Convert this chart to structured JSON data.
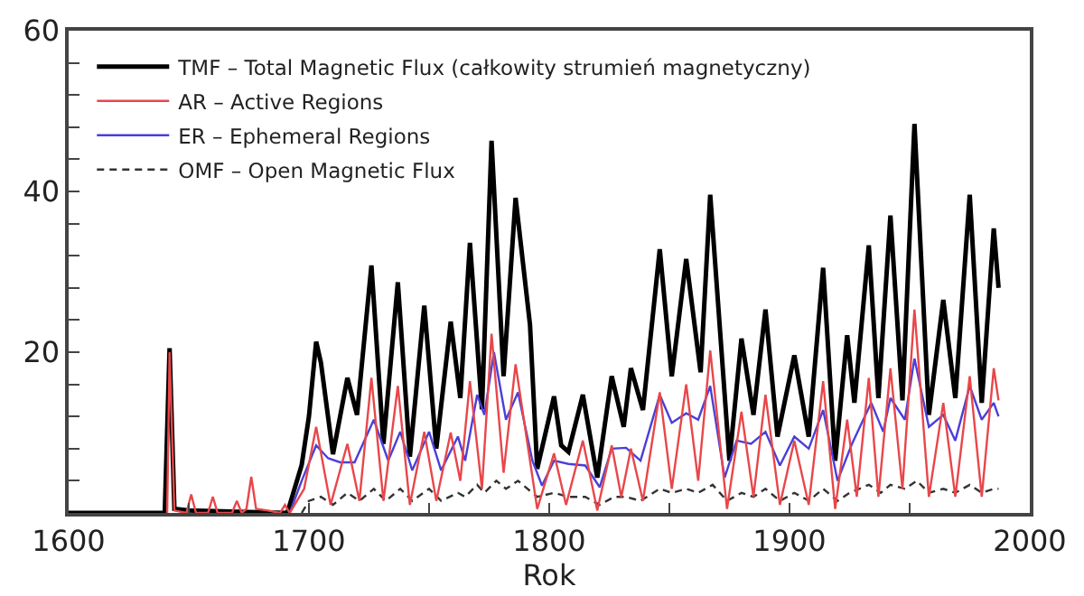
{
  "chart_data": {
    "type": "line",
    "xlabel": "Rok",
    "xlim": [
      1600,
      2000
    ],
    "xticks": [
      1600,
      {
        "value": 1650,
        "label": null
      },
      1700,
      {
        "value": 1750,
        "label": null
      },
      1800,
      {
        "value": 1850,
        "label": null
      },
      1900,
      {
        "value": 1950,
        "label": null
      },
      2000
    ],
    "ylim": [
      0,
      60
    ],
    "yticks": [
      {
        "value": 0,
        "label": null
      },
      {
        "value": 4,
        "label": null
      },
      {
        "value": 8,
        "label": null
      },
      {
        "value": 12,
        "label": null
      },
      {
        "value": 16,
        "label": null
      },
      20,
      {
        "value": 24,
        "label": null
      },
      {
        "value": 28,
        "label": null
      },
      {
        "value": 32,
        "label": null
      },
      {
        "value": 36,
        "label": null
      },
      40,
      {
        "value": 44,
        "label": null
      },
      {
        "value": 48,
        "label": null
      },
      {
        "value": 52,
        "label": null
      },
      {
        "value": 56,
        "label": null
      },
      60
    ],
    "legend": "top left",
    "marker": "none",
    "series": [
      {
        "name": "TMF – Total Magnetic Flux (całkowity strumień magnetyczny)",
        "color": "#000000",
        "line_style": "solid",
        "x": [
          1600,
          1640,
          1642,
          1644,
          1650,
          1691,
          1697,
          1700,
          1703,
          1705,
          1710,
          1716,
          1720,
          1726,
          1731,
          1737,
          1742,
          1748,
          1753,
          1759,
          1763,
          1767,
          1772,
          1776,
          1781,
          1786,
          1792,
          1795,
          1802,
          1805,
          1808,
          1814,
          1820,
          1826,
          1831,
          1834,
          1839,
          1846,
          1851,
          1857,
          1863,
          1867,
          1875,
          1880,
          1885,
          1890,
          1895,
          1902,
          1908,
          1914,
          1919,
          1924,
          1927,
          1933,
          1937,
          1942,
          1947,
          1952,
          1958,
          1964,
          1969,
          1975,
          1980,
          1985,
          1987
        ],
        "values": [
          0,
          0,
          20.5,
          0.5,
          0.3,
          0,
          6,
          12,
          21.3,
          18.7,
          7.3,
          16.8,
          12.2,
          30.8,
          8.6,
          28.7,
          7,
          25.8,
          8,
          23.8,
          14.3,
          33.6,
          12.9,
          46.3,
          17,
          39.2,
          23.4,
          5.5,
          14.5,
          8.4,
          7.6,
          14.7,
          4.4,
          17,
          10.7,
          18,
          12.8,
          32.8,
          17,
          31.6,
          17.5,
          39.6,
          6.5,
          21.7,
          12.2,
          25.3,
          9.5,
          19.6,
          9.5,
          30.5,
          6.5,
          22.1,
          13.7,
          33.3,
          14.3,
          37,
          14,
          48.4,
          12.2,
          26.5,
          14.3,
          39.6,
          13.7,
          35.4,
          28
        ]
      },
      {
        "name": "AR – Active Regions",
        "color": "#e8474a",
        "line_style": "solid",
        "x": [
          1641,
          1642,
          1644,
          1649,
          1651,
          1653,
          1658,
          1660,
          1662,
          1668,
          1670,
          1672,
          1674,
          1676,
          1678,
          1683,
          1688,
          1690,
          1692,
          1698,
          1703,
          1709,
          1716,
          1721,
          1726,
          1731,
          1737,
          1742,
          1748,
          1753,
          1759,
          1763,
          1767,
          1772,
          1776,
          1781,
          1786,
          1795,
          1802,
          1807,
          1814,
          1820,
          1826,
          1830,
          1834,
          1839,
          1846,
          1851,
          1857,
          1862,
          1867,
          1874,
          1880,
          1885,
          1890,
          1896,
          1902,
          1908,
          1914,
          1919,
          1924,
          1928,
          1933,
          1937,
          1942,
          1947,
          1952,
          1958,
          1964,
          1969,
          1975,
          1980,
          1985,
          1987
        ],
        "values": [
          0,
          20,
          0.3,
          0,
          2.3,
          0,
          0,
          2,
          0,
          0,
          1.5,
          0,
          0.5,
          4.5,
          0.5,
          0.3,
          0,
          1,
          0,
          3,
          10.7,
          1,
          8.6,
          1.5,
          16.8,
          1.5,
          15.8,
          1,
          10.1,
          1.5,
          10,
          4,
          16.4,
          3,
          22.3,
          5,
          18.5,
          0.5,
          7.4,
          1,
          9,
          0.3,
          8.4,
          2,
          8,
          1.5,
          15,
          3,
          16,
          4,
          20.2,
          0.5,
          12.6,
          2,
          14.7,
          1,
          9,
          1,
          16.4,
          0.5,
          11.6,
          2,
          16.8,
          2,
          18,
          3,
          25.3,
          2,
          13.7,
          2,
          17,
          2,
          18,
          14
        ]
      },
      {
        "name": "ER – Ephemeral Regions",
        "color": "#4a3fd8",
        "line_style": "solid",
        "x": [
          1692,
          1697,
          1703,
          1708,
          1713,
          1719,
          1727,
          1733,
          1738,
          1743,
          1750,
          1755,
          1762,
          1765,
          1770,
          1773,
          1777,
          1782,
          1787,
          1793,
          1797,
          1802,
          1808,
          1815,
          1821,
          1826,
          1832,
          1838,
          1846,
          1851,
          1857,
          1862,
          1867,
          1873,
          1878,
          1884,
          1890,
          1896,
          1902,
          1908,
          1914,
          1920,
          1926,
          1934,
          1939,
          1942,
          1948,
          1952,
          1958,
          1964,
          1969,
          1975,
          1980,
          1985,
          1987
        ],
        "values": [
          0,
          4,
          8.4,
          6.8,
          6.3,
          6.3,
          11.6,
          6.5,
          10.1,
          5.3,
          10.1,
          5.3,
          9.5,
          6.5,
          14.7,
          12.2,
          20,
          11.6,
          15,
          6.5,
          3.4,
          6.5,
          6.1,
          5.9,
          3.2,
          8,
          8.1,
          6.5,
          14.7,
          11.2,
          12.4,
          11.6,
          15.8,
          4.4,
          9,
          8.6,
          10.1,
          5.9,
          9.5,
          8,
          12.8,
          4,
          8.6,
          13.7,
          10.1,
          14.3,
          11.6,
          19.2,
          10.7,
          12.2,
          9,
          15.8,
          11.6,
          13.7,
          12
        ]
      },
      {
        "name": "OMF – Open Magnetic Flux",
        "color": "#333333",
        "line_style": "dashed",
        "x": [
          1697,
          1700,
          1705,
          1710,
          1716,
          1721,
          1727,
          1732,
          1738,
          1743,
          1750,
          1755,
          1762,
          1765,
          1770,
          1773,
          1778,
          1782,
          1787,
          1795,
          1802,
          1808,
          1815,
          1821,
          1827,
          1832,
          1838,
          1846,
          1851,
          1857,
          1862,
          1868,
          1874,
          1880,
          1885,
          1890,
          1896,
          1902,
          1908,
          1914,
          1920,
          1925,
          1933,
          1938,
          1942,
          1948,
          1953,
          1958,
          1964,
          1969,
          1975,
          1980,
          1985,
          1987
        ],
        "values": [
          0,
          1.5,
          2,
          1,
          2.5,
          1.5,
          3,
          1.5,
          3,
          1.5,
          3,
          1.5,
          2.5,
          2,
          3.5,
          2.5,
          4,
          3,
          4,
          2,
          2.5,
          2,
          2,
          1,
          2,
          2,
          1.5,
          3,
          2.5,
          3,
          2.5,
          3.5,
          1.5,
          2.5,
          2,
          3,
          1.5,
          2.5,
          1.5,
          3,
          1.5,
          2.5,
          3.5,
          2.5,
          3.5,
          3,
          4,
          2.5,
          3,
          2.5,
          3.5,
          2.5,
          3,
          3
        ]
      }
    ]
  }
}
